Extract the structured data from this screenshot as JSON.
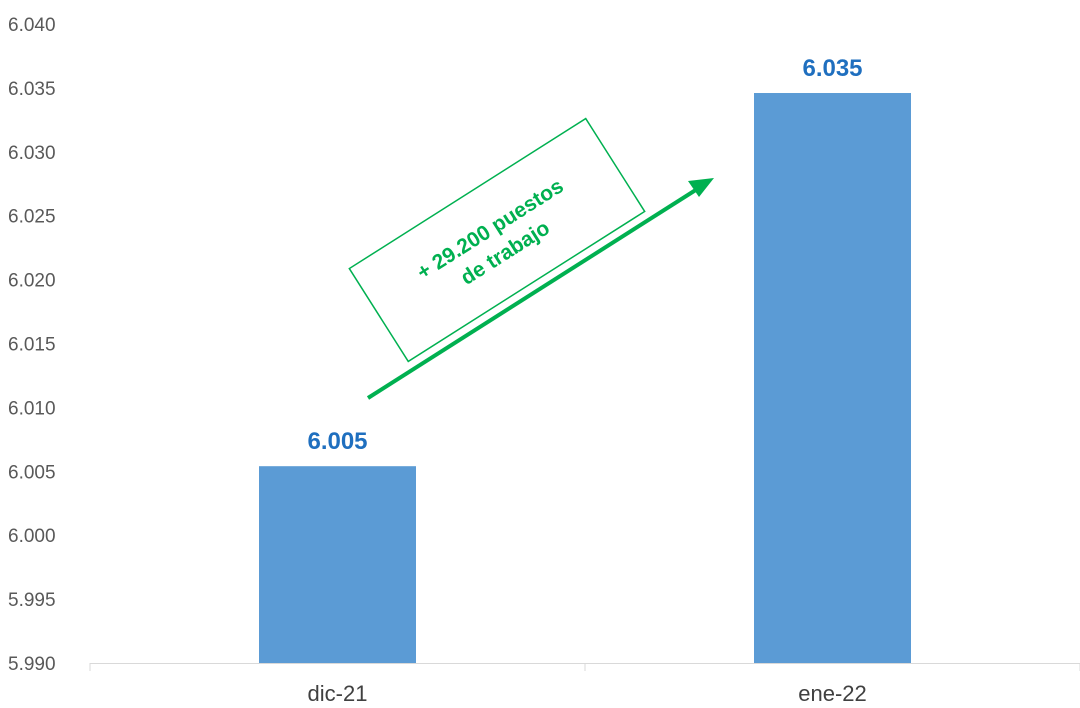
{
  "chart_data": {
    "type": "bar",
    "categories": [
      "dic-21",
      "ene-22"
    ],
    "values": [
      6005.4,
      6034.6
    ],
    "data_labels": [
      "6.005",
      "6.035"
    ],
    "ylim": [
      5990,
      6040
    ],
    "yticks": [
      5990,
      5995,
      6000,
      6005,
      6010,
      6015,
      6020,
      6025,
      6030,
      6035,
      6040
    ],
    "ytick_labels": [
      "5.990",
      "5.995",
      "6.000",
      "6.005",
      "6.010",
      "6.015",
      "6.020",
      "6.025",
      "6.030",
      "6.035",
      "6.040"
    ],
    "grid": false,
    "annotation": {
      "line1": "+ 29.200 puestos",
      "line2": "de trabajo"
    },
    "colors": {
      "bar": "#5b9bd5",
      "data_label": "#1f6fbf",
      "annotation": "#00b050",
      "axis": "#d9d9d9",
      "tick_text": "#595959"
    }
  }
}
